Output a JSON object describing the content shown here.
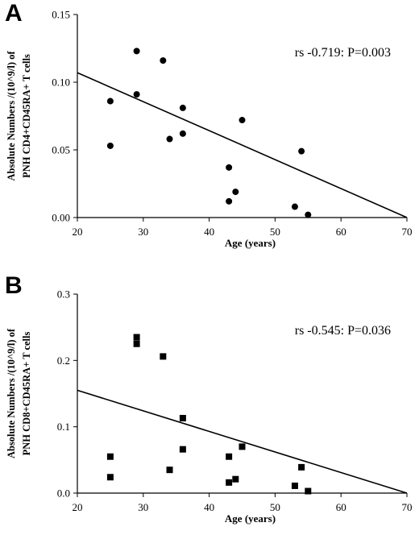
{
  "chart_data": [
    {
      "panel": "A",
      "type": "scatter",
      "marker": "circle",
      "xlabel": "Age (years)",
      "ylabel_line1": "Absolute Numbers /(10^9/l) of",
      "ylabel_line2": "PNH CD4+CD45RA+ T cells",
      "annotation": "rs -0.719: P=0.003",
      "xlim": [
        20,
        70
      ],
      "ylim": [
        0,
        0.15
      ],
      "xticks": [
        20,
        30,
        40,
        50,
        60,
        70
      ],
      "yticks": [
        0,
        0.05,
        0.1,
        0.15
      ],
      "ytick_labels": [
        "0.00",
        "0.05",
        "0.10",
        "0.15"
      ],
      "points": [
        {
          "x": 25,
          "y": 0.086
        },
        {
          "x": 25,
          "y": 0.053
        },
        {
          "x": 29,
          "y": 0.123
        },
        {
          "x": 29,
          "y": 0.091
        },
        {
          "x": 33,
          "y": 0.116
        },
        {
          "x": 34,
          "y": 0.058
        },
        {
          "x": 36,
          "y": 0.081
        },
        {
          "x": 36,
          "y": 0.062
        },
        {
          "x": 43,
          "y": 0.037
        },
        {
          "x": 43,
          "y": 0.012
        },
        {
          "x": 44,
          "y": 0.019
        },
        {
          "x": 45,
          "y": 0.072
        },
        {
          "x": 53,
          "y": 0.008
        },
        {
          "x": 54,
          "y": 0.049
        },
        {
          "x": 55,
          "y": 0.002
        }
      ],
      "fit_line": [
        {
          "x": 20,
          "y": 0.107
        },
        {
          "x": 70,
          "y": 0
        }
      ]
    },
    {
      "panel": "B",
      "type": "scatter",
      "marker": "square",
      "xlabel": "Age (years)",
      "ylabel_line1": "Absolute Numbers /(10^9/l) of",
      "ylabel_line2": "PNH CD8+CD45RA+ T cells",
      "annotation": "rs -0.545: P=0.036",
      "xlim": [
        20,
        70
      ],
      "ylim": [
        0,
        0.3
      ],
      "xticks": [
        20,
        30,
        40,
        50,
        60,
        70
      ],
      "yticks": [
        0,
        0.1,
        0.2,
        0.3
      ],
      "ytick_labels": [
        "0.0",
        "0.1",
        "0.2",
        "0.3"
      ],
      "points": [
        {
          "x": 25,
          "y": 0.055
        },
        {
          "x": 25,
          "y": 0.024
        },
        {
          "x": 29,
          "y": 0.235
        },
        {
          "x": 29,
          "y": 0.225
        },
        {
          "x": 33,
          "y": 0.206
        },
        {
          "x": 34,
          "y": 0.035
        },
        {
          "x": 36,
          "y": 0.113
        },
        {
          "x": 36,
          "y": 0.066
        },
        {
          "x": 43,
          "y": 0.055
        },
        {
          "x": 43,
          "y": 0.016
        },
        {
          "x": 44,
          "y": 0.021
        },
        {
          "x": 45,
          "y": 0.07
        },
        {
          "x": 53,
          "y": 0.011
        },
        {
          "x": 54,
          "y": 0.039
        },
        {
          "x": 55,
          "y": 0.003
        }
      ],
      "fit_line": [
        {
          "x": 20,
          "y": 0.155
        },
        {
          "x": 70,
          "y": 0
        }
      ]
    }
  ]
}
